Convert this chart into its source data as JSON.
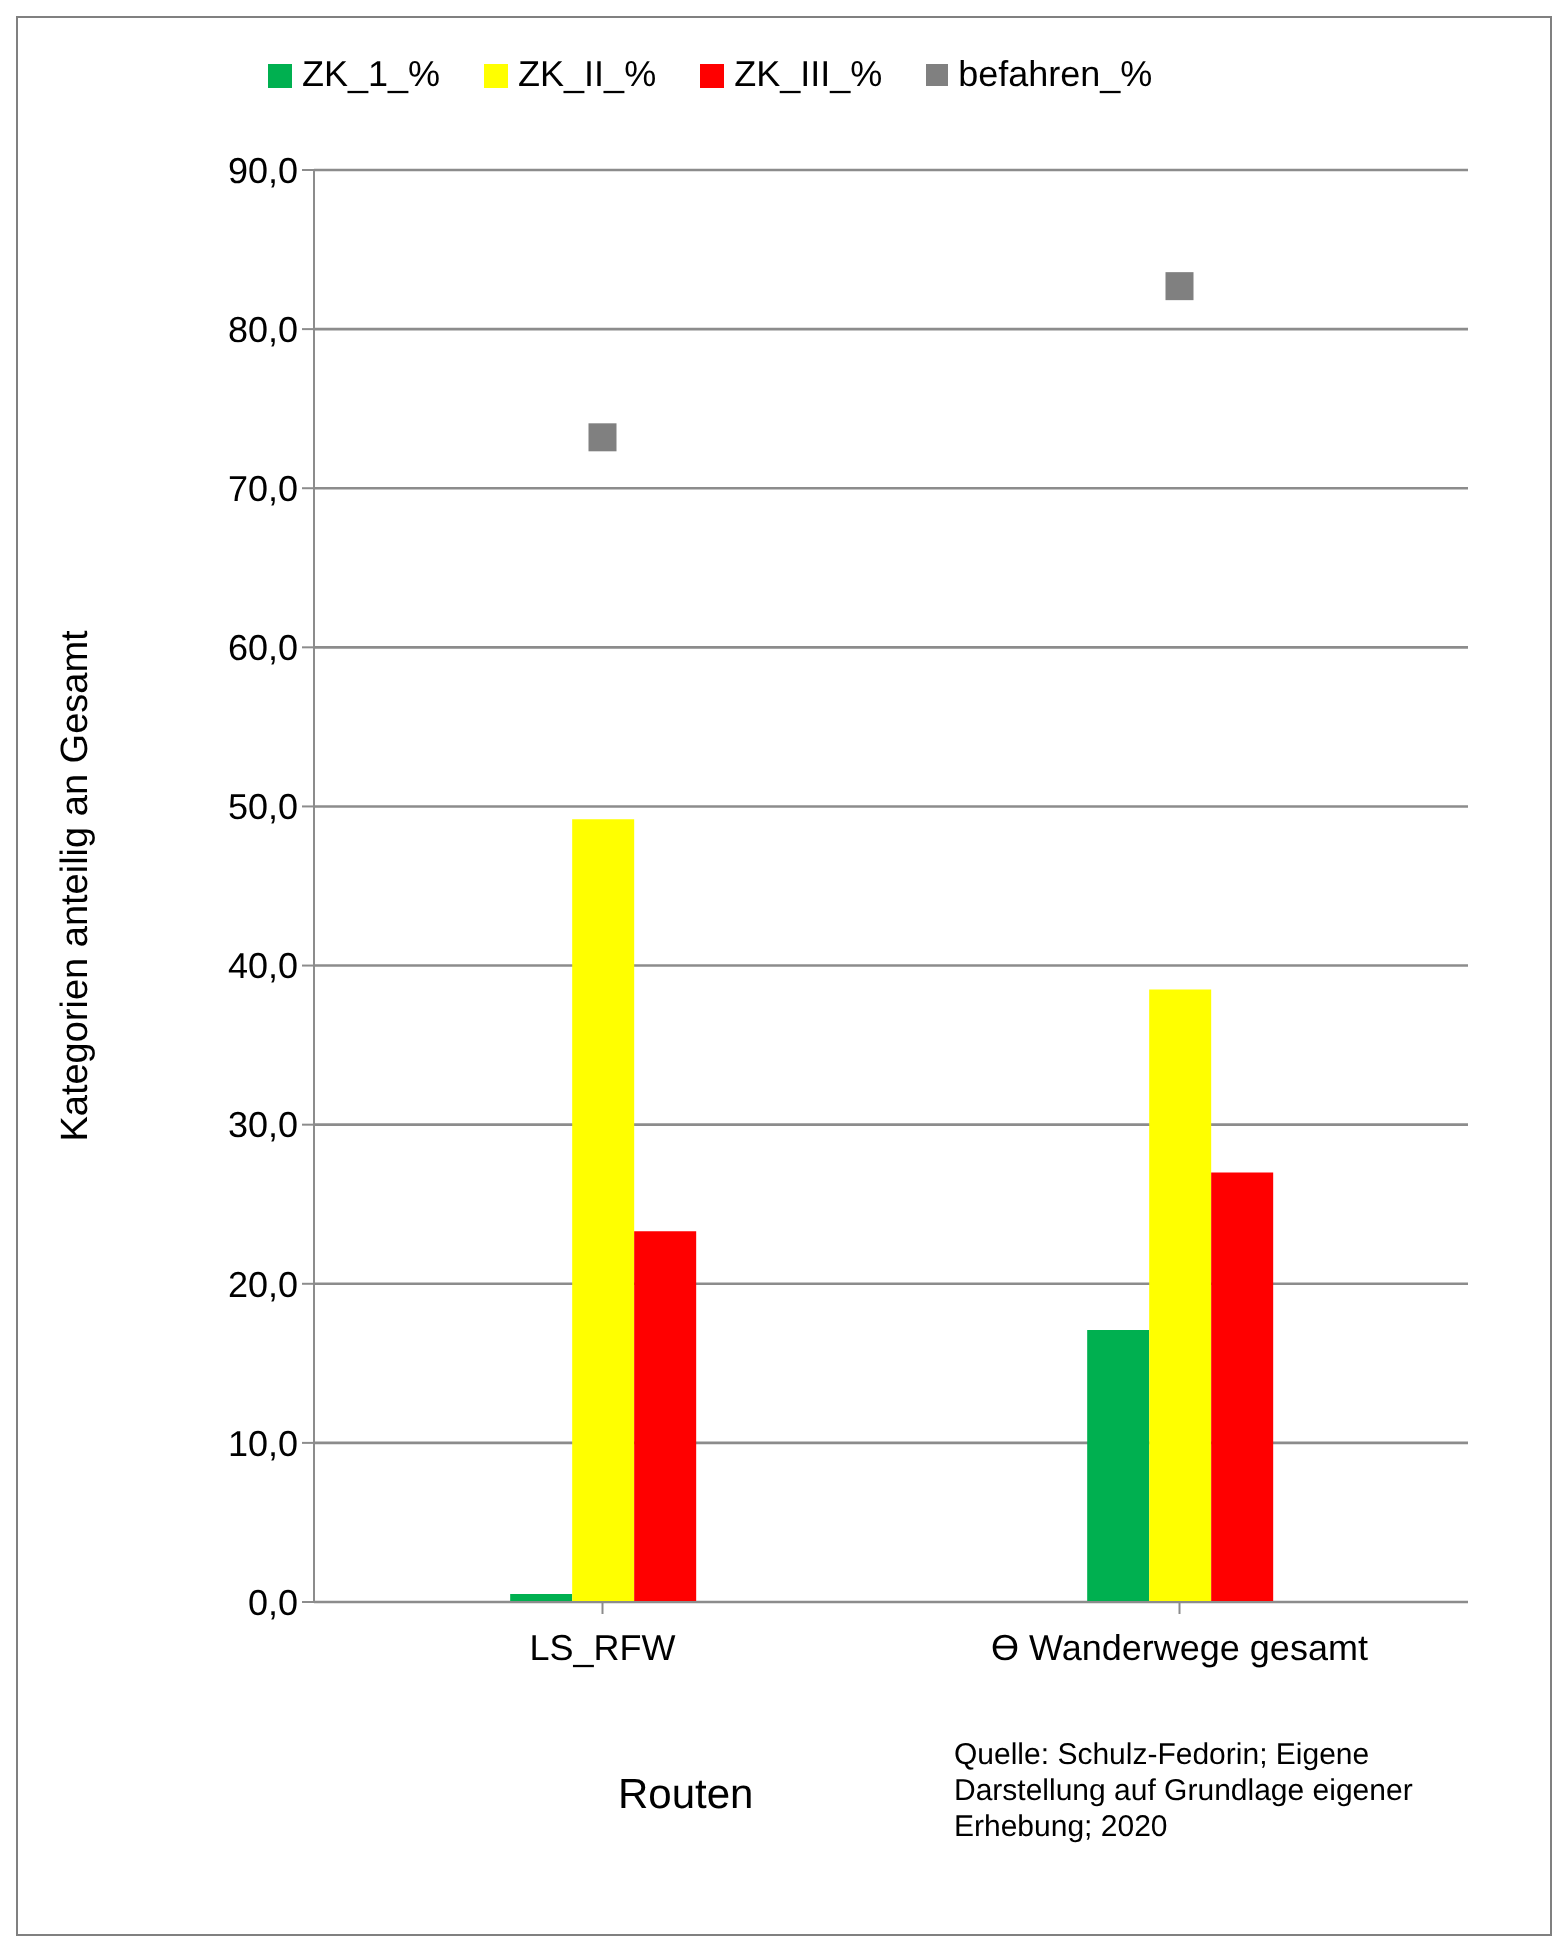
{
  "chart_data": {
    "type": "bar",
    "categories": [
      "LS_RFW",
      "ϴ Wanderwege gesamt"
    ],
    "series": [
      {
        "name": "ZK_1_%",
        "color": "#00b050",
        "values": [
          0.5,
          17.1
        ]
      },
      {
        "name": "ZK_II_%",
        "color": "#ffff00",
        "values": [
          49.2,
          38.5
        ]
      },
      {
        "name": "ZK_III_%",
        "color": "#ff0000",
        "values": [
          23.3,
          27.0
        ]
      },
      {
        "name": "befahren_%",
        "type": "scatter",
        "marker": "square",
        "color": "#808080",
        "values": [
          73.2,
          82.7
        ]
      }
    ],
    "ylabel": "Kategorien  anteilig an Gesamt",
    "xlabel": "Routen",
    "ylim": [
      0,
      90
    ],
    "yticks": [
      {
        "value": 0,
        "label": "0,0"
      },
      {
        "value": 10,
        "label": "10,0"
      },
      {
        "value": 20,
        "label": "20,0"
      },
      {
        "value": 30,
        "label": "30,0"
      },
      {
        "value": 40,
        "label": "40,0"
      },
      {
        "value": 50,
        "label": "50,0"
      },
      {
        "value": 60,
        "label": "60,0"
      },
      {
        "value": 70,
        "label": "70,0"
      },
      {
        "value": 80,
        "label": "80,0"
      },
      {
        "value": 90,
        "label": "90,0"
      }
    ],
    "grid": "y",
    "legend": "top",
    "annotations": [
      "Quelle: Schulz-Fedorin; Eigene Darstellung auf Grundlage eigener Erhebung; 2020"
    ]
  }
}
